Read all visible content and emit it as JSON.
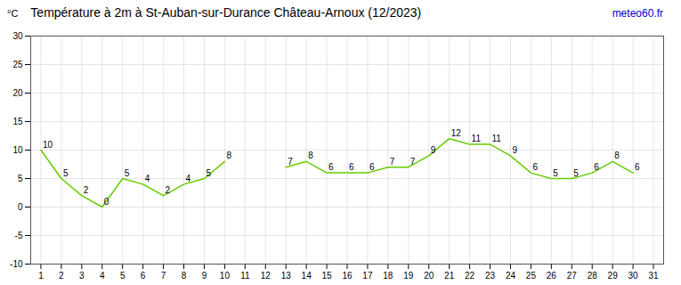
{
  "chart_data": {
    "type": "line",
    "title": "Température à 2m à St-Auban-sur-Durance Château-Arnoux (12/2023)",
    "ylabel": "°C",
    "annotations": [
      {
        "text": "meteo60.fr",
        "color": "#0000cc"
      }
    ],
    "x": [
      1,
      2,
      3,
      4,
      5,
      6,
      7,
      8,
      9,
      10,
      11,
      12,
      13,
      14,
      15,
      16,
      17,
      18,
      19,
      20,
      21,
      22,
      23,
      24,
      25,
      26,
      27,
      28,
      29,
      30,
      31
    ],
    "values": [
      10,
      5,
      2,
      0,
      5,
      4,
      2,
      4,
      5,
      8,
      null,
      null,
      7,
      8,
      6,
      6,
      6,
      7,
      7,
      9,
      12,
      11,
      11,
      9,
      6,
      5,
      5,
      6,
      8,
      6,
      null
    ],
    "color": "#66cc00",
    "xlim": [
      0.5,
      31.5
    ],
    "xticks": [
      1,
      2,
      3,
      4,
      5,
      6,
      7,
      8,
      9,
      10,
      11,
      12,
      13,
      14,
      15,
      16,
      17,
      18,
      19,
      20,
      21,
      22,
      23,
      24,
      25,
      26,
      27,
      28,
      29,
      30,
      31
    ],
    "ylim": [
      -10,
      30
    ],
    "yticks": [
      -10,
      -5,
      0,
      5,
      10,
      15,
      20,
      25,
      30
    ],
    "grid": true,
    "data_labels": true
  }
}
